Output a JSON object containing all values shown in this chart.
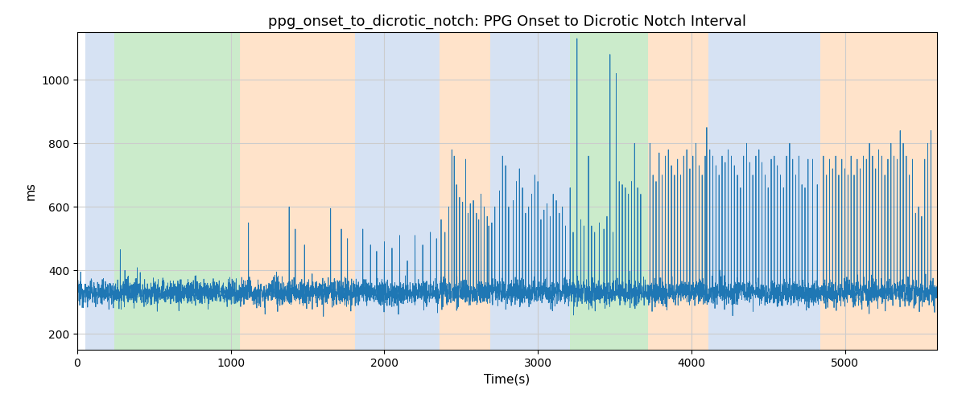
{
  "title": "ppg_onset_to_dicrotic_notch: PPG Onset to Dicrotic Notch Interval",
  "xlabel": "Time(s)",
  "ylabel": "ms",
  "xlim": [
    0,
    5600
  ],
  "ylim": [
    150,
    1150
  ],
  "yticks": [
    200,
    400,
    600,
    800,
    1000
  ],
  "background_color": "#ffffff",
  "line_color": "#1f77b4",
  "line_width": 0.6,
  "title_fontsize": 13,
  "label_fontsize": 11,
  "figsize": [
    12.0,
    5.0
  ],
  "dpi": 100,
  "bands": [
    {
      "xmin": 50,
      "xmax": 240,
      "color": "#aec7e8",
      "alpha": 0.5
    },
    {
      "xmin": 240,
      "xmax": 1060,
      "color": "#98d898",
      "alpha": 0.5
    },
    {
      "xmin": 1060,
      "xmax": 1810,
      "color": "#ffc896",
      "alpha": 0.5
    },
    {
      "xmin": 1810,
      "xmax": 2360,
      "color": "#aec7e8",
      "alpha": 0.5
    },
    {
      "xmin": 2360,
      "xmax": 2690,
      "color": "#ffc896",
      "alpha": 0.5
    },
    {
      "xmin": 2690,
      "xmax": 3210,
      "color": "#aec7e8",
      "alpha": 0.5
    },
    {
      "xmin": 3210,
      "xmax": 3720,
      "color": "#98d898",
      "alpha": 0.5
    },
    {
      "xmin": 3720,
      "xmax": 4110,
      "color": "#ffc896",
      "alpha": 0.5
    },
    {
      "xmin": 4110,
      "xmax": 4840,
      "color": "#aec7e8",
      "alpha": 0.5
    },
    {
      "xmin": 4840,
      "xmax": 5600,
      "color": "#ffc896",
      "alpha": 0.5
    }
  ],
  "seed": 12345,
  "n_points": 5600,
  "base_value": 330,
  "noise_std": 20
}
